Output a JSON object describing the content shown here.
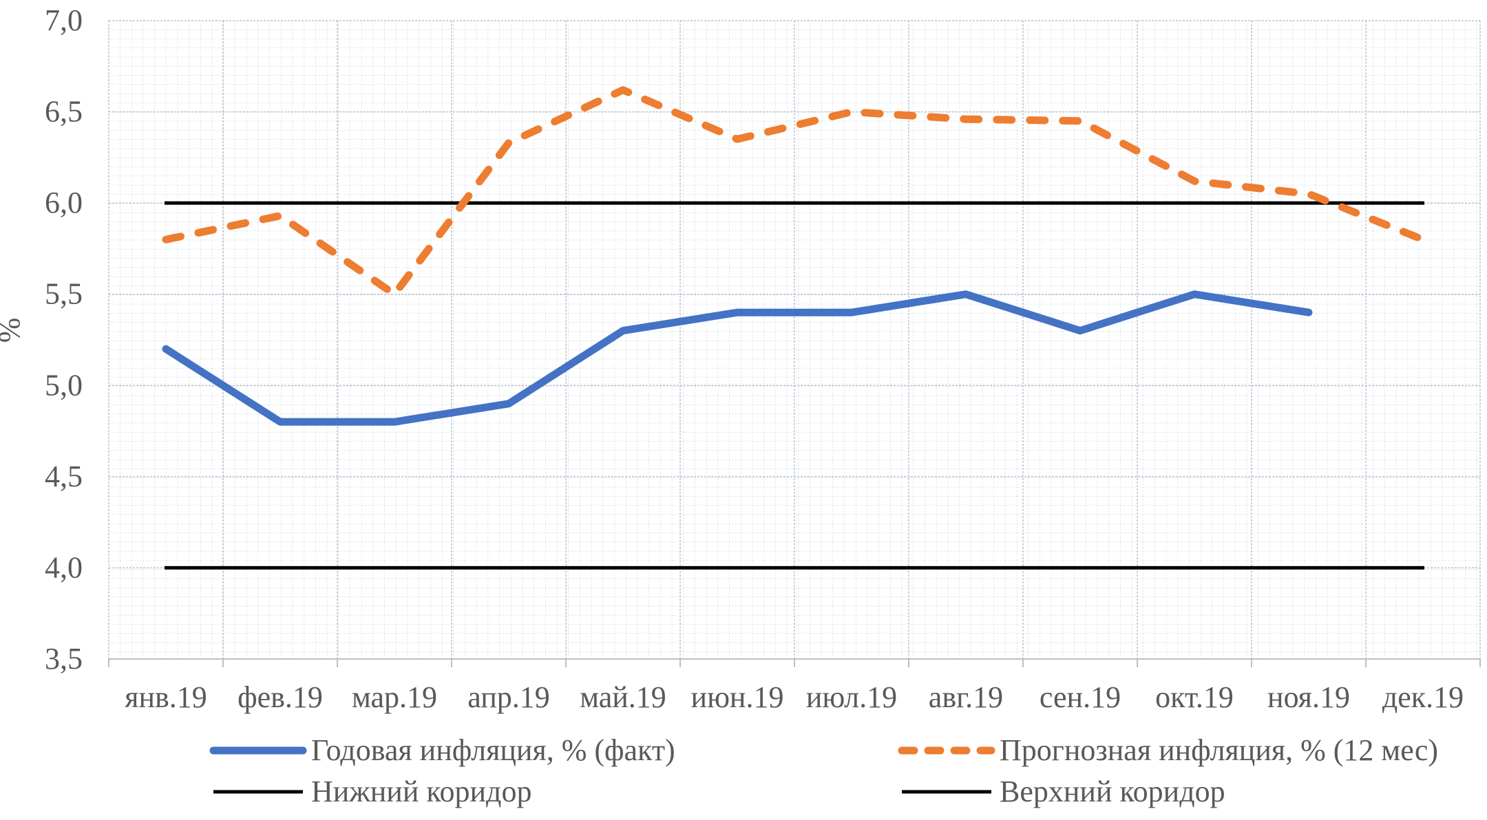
{
  "chart_data": {
    "type": "line",
    "categories": [
      "янв.19",
      "фев.19",
      "мар.19",
      "апр.19",
      "май.19",
      "июн.19",
      "июл.19",
      "авг.19",
      "сен.19",
      "окт.19",
      "ноя.19",
      "дек.19"
    ],
    "ylabel": "%",
    "ylim": [
      3.5,
      7.0
    ],
    "y_ticks": [
      "3,5",
      "4,0",
      "4,5",
      "5,0",
      "5,5",
      "6,0",
      "6,5",
      "7,0"
    ],
    "grid": true,
    "legend_position": "bottom",
    "series": [
      {
        "name": "Годовая инфляция, % (факт)",
        "values": [
          5.2,
          4.8,
          4.8,
          4.9,
          5.3,
          5.4,
          5.4,
          5.5,
          5.3,
          5.5,
          5.4,
          null
        ],
        "color": "#4472c4",
        "style": "solid"
      },
      {
        "name": "Прогнозная инфляция, % (12 мес)",
        "values": [
          5.8,
          5.93,
          5.5,
          6.33,
          6.62,
          6.35,
          6.5,
          6.46,
          6.45,
          6.12,
          6.05,
          5.8
        ],
        "color": "#ed7d31",
        "style": "dashed"
      },
      {
        "name": "Нижний коридор",
        "values": [
          4.0,
          4.0,
          4.0,
          4.0,
          4.0,
          4.0,
          4.0,
          4.0,
          4.0,
          4.0,
          4.0,
          4.0
        ],
        "color": "#000000",
        "style": "solid"
      },
      {
        "name": "Верхний коридор",
        "values": [
          6.0,
          6.0,
          6.0,
          6.0,
          6.0,
          6.0,
          6.0,
          6.0,
          6.0,
          6.0,
          6.0,
          6.0
        ],
        "color": "#000000",
        "style": "solid"
      }
    ]
  }
}
